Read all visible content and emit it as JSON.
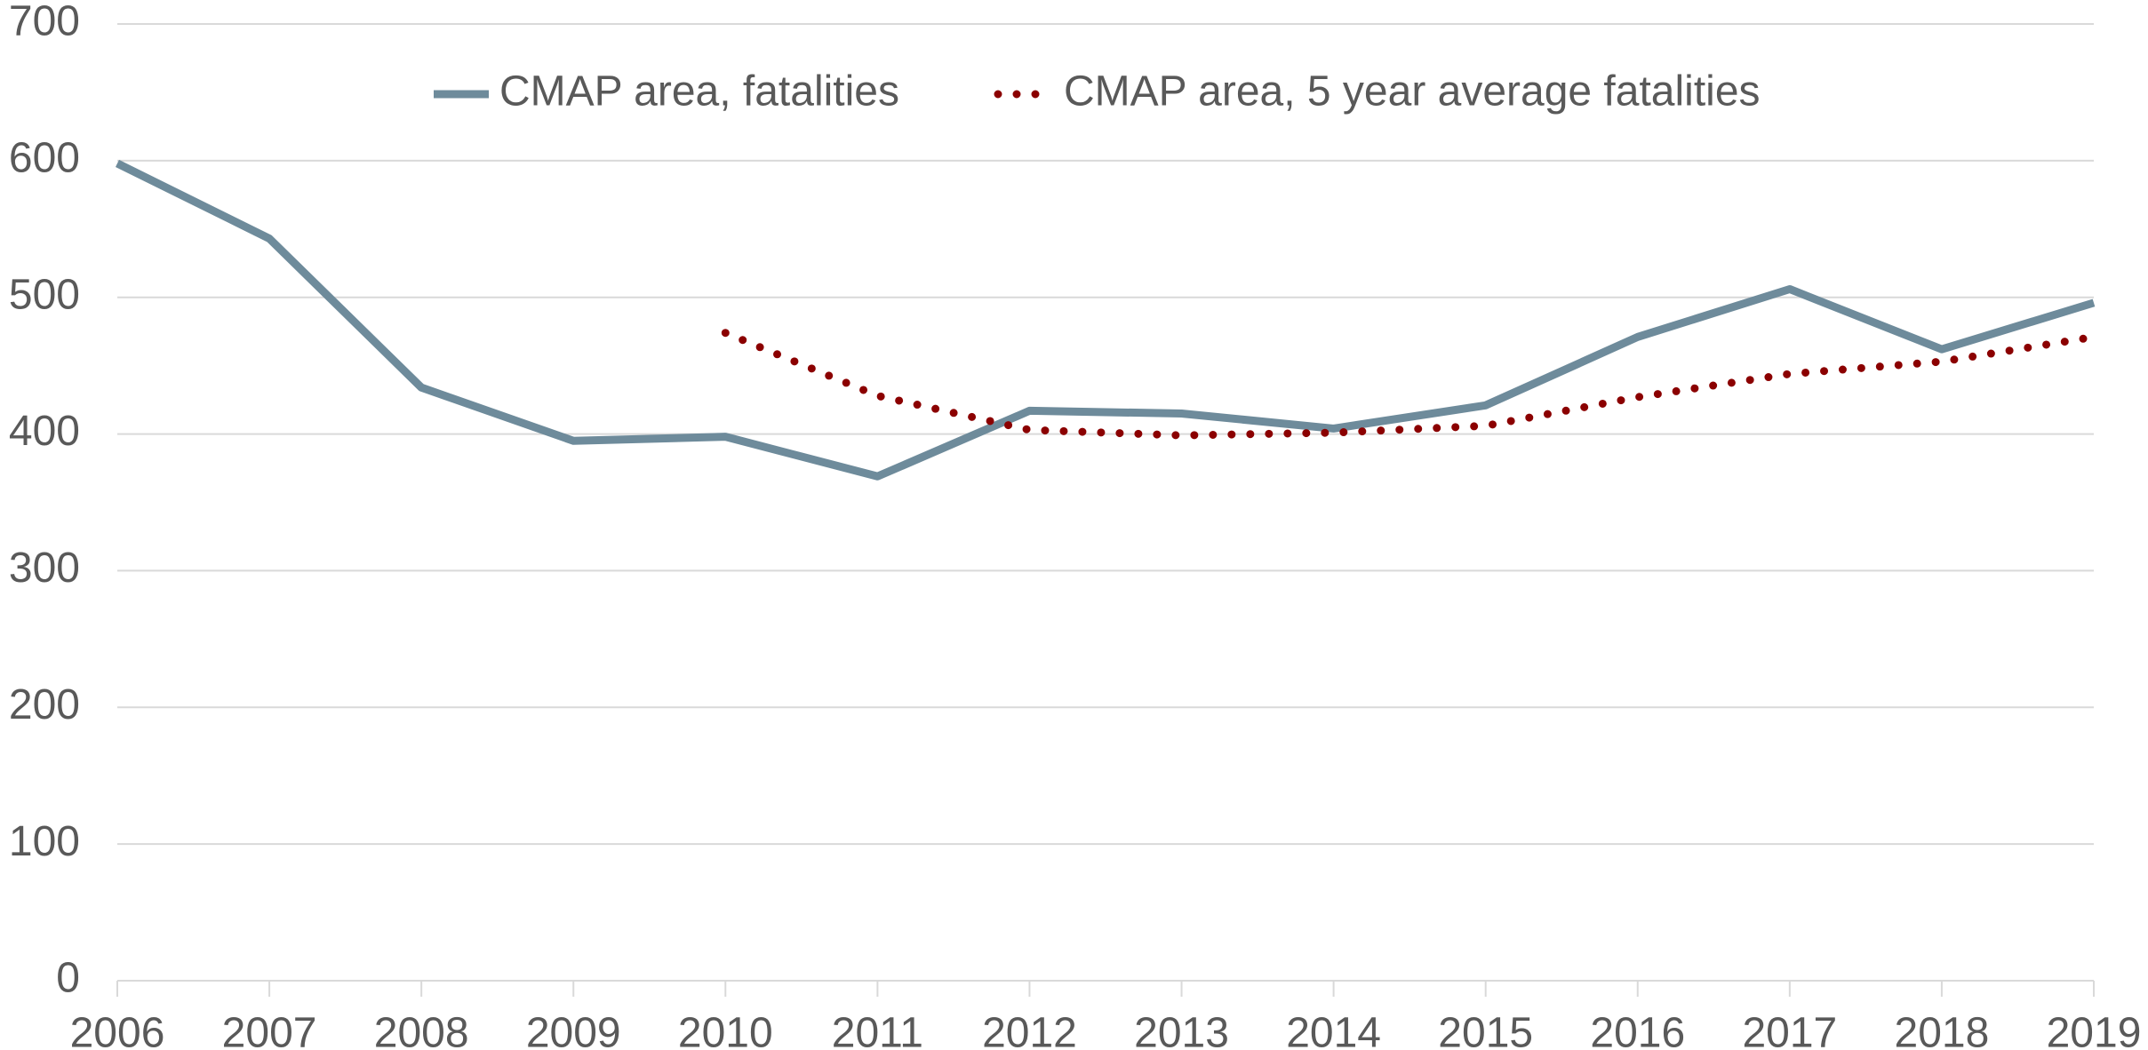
{
  "chart_data": {
    "type": "line",
    "x": [
      2006,
      2007,
      2008,
      2009,
      2010,
      2011,
      2012,
      2013,
      2014,
      2015,
      2016,
      2017,
      2018,
      2019
    ],
    "series": [
      {
        "name": "CMAP area, fatalities",
        "color": "#6e8b9b",
        "style": "solid",
        "values": [
          598,
          543,
          434,
          395,
          398,
          369,
          417,
          415,
          404,
          421,
          471,
          506,
          462,
          496
        ]
      },
      {
        "name": "CMAP area, 5 year average fatalities",
        "color": "#8b0000",
        "style": "dotted",
        "values": [
          null,
          null,
          null,
          null,
          474,
          428,
          403,
          399,
          401,
          406,
          427,
          444,
          453,
          471
        ]
      }
    ],
    "xlim": [
      2006,
      2019
    ],
    "xticks": [
      2006,
      2007,
      2008,
      2009,
      2010,
      2011,
      2012,
      2013,
      2014,
      2015,
      2016,
      2017,
      2018,
      2019
    ],
    "ylim": [
      0,
      700
    ],
    "yticks": [
      0,
      100,
      200,
      300,
      400,
      500,
      600,
      700
    ],
    "grid": true,
    "legend": "top"
  }
}
